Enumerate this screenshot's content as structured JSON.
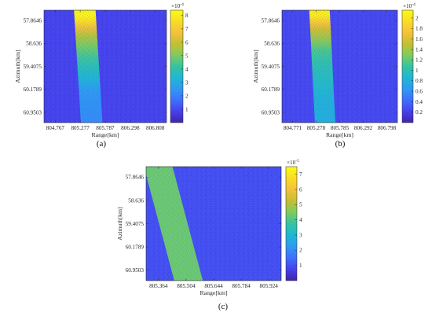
{
  "figure": {
    "panel_labels": [
      "(a)",
      "(b)",
      "(c)"
    ]
  },
  "colors": {
    "colormap": [
      "#3e26a8",
      "#4740ec",
      "#3f6ffd",
      "#2f99f3",
      "#1fb7d3",
      "#36c3a1",
      "#7fcb5f",
      "#c5bf32",
      "#f4c13d",
      "#f9dc26",
      "#f9fb15"
    ],
    "background_level": "#3840d8"
  },
  "chart_data": [
    {
      "type": "heatmap",
      "panel": "(a)",
      "xlabel": "Range[km]",
      "ylabel": "Azimuth[km]",
      "x_ticks": [
        "804.767",
        "805.277",
        "805.787",
        "806.298",
        "806.808"
      ],
      "y_ticks": [
        "57.8646",
        "58.636",
        "59.4075",
        "60.1789",
        "60.9503"
      ],
      "colorbar": {
        "ticks": [
          "1",
          "2",
          "3",
          "4",
          "5",
          "6",
          "7",
          "8"
        ],
        "exponent": "×10",
        "exponent_power": "-4",
        "range": [
          0,
          0.00084
        ]
      },
      "strip": {
        "shape": "slanted",
        "range_start_top": [
          805.15,
          805.59
        ],
        "range_start_bottom": [
          805.29,
          805.73
        ],
        "intensity_profile": [
          {
            "azimuth": 57.7,
            "value": 0.00082
          },
          {
            "azimuth": 57.9,
            "value": 0.00076
          },
          {
            "azimuth": 58.1,
            "value": 0.00066
          },
          {
            "azimuth": 58.4,
            "value": 0.00056
          },
          {
            "azimuth": 58.75,
            "value": 0.00049
          },
          {
            "azimuth": 59.1,
            "value": 0.00043
          },
          {
            "azimuth": 59.45,
            "value": 0.00038
          },
          {
            "azimuth": 59.8,
            "value": 0.00033
          },
          {
            "azimuth": 60.2,
            "value": 0.00026
          },
          {
            "azimuth": 60.6,
            "value": 0.00024
          },
          {
            "azimuth": 61.1,
            "value": 0.00023
          }
        ]
      },
      "background_value": 9e-05
    },
    {
      "type": "heatmap",
      "panel": "(b)",
      "xlabel": "Range[km]",
      "ylabel": "Azimuth[km]",
      "x_ticks": [
        "804.771",
        "805.278",
        "805.785",
        "806.292",
        "806.798"
      ],
      "y_ticks": [
        "57.8646",
        "58.636",
        "59.4075",
        "60.1789",
        "60.9503"
      ],
      "colorbar": {
        "ticks": [
          "0.2",
          "0.4",
          "0.6",
          "0.8",
          "1",
          "1.2",
          "1.4",
          "1.6",
          "1.8",
          "2"
        ],
        "exponent": "×10",
        "exponent_power": "-4",
        "range": [
          0,
          0.000215
        ]
      },
      "strip": {
        "shape": "slanted",
        "range_start_top": [
          805.13,
          805.57
        ],
        "range_start_bottom": [
          805.25,
          805.69
        ],
        "intensity_profile": [
          {
            "azimuth": 57.7,
            "value": 0.000205
          },
          {
            "azimuth": 57.95,
            "value": 0.000175
          },
          {
            "azimuth": 58.15,
            "value": 0.000155
          },
          {
            "azimuth": 58.5,
            "value": 0.000135
          },
          {
            "azimuth": 58.9,
            "value": 0.000112
          },
          {
            "azimuth": 59.3,
            "value": 0.000102
          },
          {
            "azimuth": 59.7,
            "value": 9.5e-05
          },
          {
            "azimuth": 60.1,
            "value": 9e-05
          },
          {
            "azimuth": 60.5,
            "value": 8.2e-05
          },
          {
            "azimuth": 60.9,
            "value": 8e-05
          },
          {
            "azimuth": 61.1,
            "value": 8e-05
          }
        ]
      },
      "background_value": 2.5e-05
    },
    {
      "type": "heatmap",
      "panel": "(c)",
      "xlabel": "Range[km]",
      "ylabel": "Azimuth[km]",
      "x_ticks": [
        "805.364",
        "805.504",
        "805.644",
        "805.784",
        "805.924"
      ],
      "y_ticks": [
        "57.8646",
        "58.636",
        "59.4075",
        "60.1789",
        "60.9503"
      ],
      "colorbar": {
        "ticks": [
          "1",
          "2",
          "3",
          "4",
          "5",
          "6",
          "7"
        ],
        "exponent": "×10",
        "exponent_power": "-5",
        "range": [
          0,
          7.5e-05
        ]
      },
      "strip": {
        "shape": "slanted",
        "range_start_top": [
          805.29,
          805.435
        ],
        "range_start_bottom": [
          805.444,
          805.589
        ],
        "intensity_profile": [
          {
            "azimuth": 57.6,
            "value": 4.3e-05
          },
          {
            "azimuth": 61.3,
            "value": 4.3e-05
          }
        ]
      },
      "background_value": 1e-05
    }
  ]
}
